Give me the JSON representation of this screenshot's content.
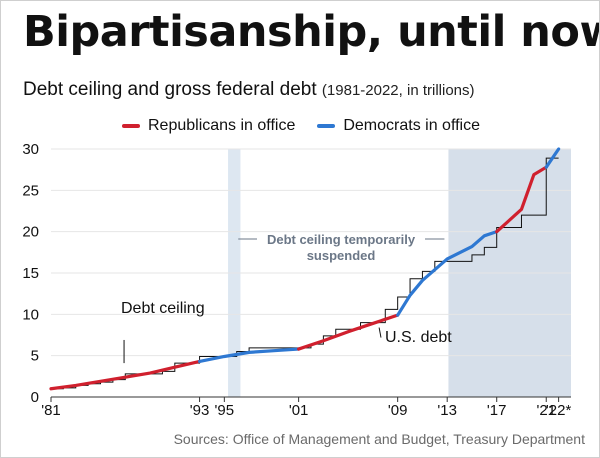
{
  "chart_data": {
    "type": "line",
    "title": "Bipartisanship, until now",
    "subtitle": "Debt ceiling and gross federal debt",
    "subtitle_detail": "(1981-2022, in trillions)",
    "xlim": [
      1981,
      2023
    ],
    "ylim": [
      0,
      30
    ],
    "yticks": [
      0,
      5,
      10,
      15,
      20,
      25,
      30
    ],
    "xticks": [
      {
        "value": 1981,
        "label": "'81"
      },
      {
        "value": 1993,
        "label": "'93"
      },
      {
        "value": 1995,
        "label": "'95"
      },
      {
        "value": 2001,
        "label": "'01"
      },
      {
        "value": 2009,
        "label": "'09"
      },
      {
        "value": 2013,
        "label": "'13"
      },
      {
        "value": 2017,
        "label": "'17"
      },
      {
        "value": 2021,
        "label": "'21"
      },
      {
        "value": 2022,
        "label": "'22*"
      }
    ],
    "legend": [
      {
        "name": "Republicans in office",
        "color": "#d0202e"
      },
      {
        "name": "Democrats in office",
        "color": "#2e78d2"
      }
    ],
    "shaded_periods": [
      {
        "start": 1995.3,
        "end": 1996.3,
        "color": "#dde7f1"
      },
      {
        "start": 2013.1,
        "end": 2023.0,
        "color": "#d6dfea"
      }
    ],
    "series": [
      {
        "name": "U.S. debt",
        "segments": [
          {
            "party": "Republicans in office",
            "points": [
              [
                1981,
                1.0
              ],
              [
                1983,
                1.4
              ],
              [
                1985,
                1.9
              ],
              [
                1987,
                2.4
              ],
              [
                1989,
                2.9
              ],
              [
                1991,
                3.6
              ],
              [
                1993,
                4.3
              ]
            ]
          },
          {
            "party": "Democrats in office",
            "points": [
              [
                1993,
                4.3
              ],
              [
                1995,
                4.9
              ],
              [
                1997,
                5.4
              ],
              [
                1999,
                5.6
              ],
              [
                2001,
                5.8
              ]
            ]
          },
          {
            "party": "Republicans in office",
            "points": [
              [
                2001,
                5.8
              ],
              [
                2003,
                6.8
              ],
              [
                2005,
                7.9
              ],
              [
                2007,
                8.9
              ],
              [
                2009,
                9.9
              ]
            ]
          },
          {
            "party": "Democrats in office",
            "points": [
              [
                2009,
                9.9
              ],
              [
                2010,
                12.3
              ],
              [
                2011,
                14.1
              ],
              [
                2013,
                16.7
              ],
              [
                2015,
                18.2
              ],
              [
                2016,
                19.5
              ],
              [
                2017,
                20.0
              ]
            ]
          },
          {
            "party": "Republicans in office",
            "points": [
              [
                2017,
                20.0
              ],
              [
                2019,
                22.7
              ],
              [
                2020,
                26.9
              ],
              [
                2021,
                27.8
              ]
            ]
          },
          {
            "party": "Democrats in office",
            "points": [
              [
                2021,
                27.8
              ],
              [
                2022,
                30.0
              ]
            ]
          }
        ]
      },
      {
        "name": "Debt ceiling",
        "color": "#111111",
        "step_points": [
          [
            1981,
            1.0
          ],
          [
            1982,
            1.1
          ],
          [
            1983,
            1.4
          ],
          [
            1984,
            1.6
          ],
          [
            1985,
            1.8
          ],
          [
            1986,
            2.1
          ],
          [
            1987,
            2.8
          ],
          [
            1990,
            3.1
          ],
          [
            1991,
            4.1
          ],
          [
            1993,
            4.9
          ],
          [
            1996,
            5.5
          ],
          [
            1997,
            5.95
          ],
          [
            2002,
            6.4
          ],
          [
            2003,
            7.4
          ],
          [
            2004,
            8.2
          ],
          [
            2006,
            9.0
          ],
          [
            2008,
            10.6
          ],
          [
            2009,
            12.1
          ],
          [
            2010,
            14.3
          ],
          [
            2011,
            15.2
          ],
          [
            2012,
            16.4
          ],
          [
            2015,
            17.2
          ],
          [
            2016,
            18.1
          ],
          [
            2017,
            20.5
          ],
          [
            2019,
            22.0
          ],
          [
            2021,
            28.9
          ],
          [
            2022,
            28.9
          ]
        ]
      }
    ],
    "annotations": {
      "debt_ceiling": "Debt ceiling",
      "us_debt": "U.S. debt",
      "suspended_line1": "Debt ceiling temporarily",
      "suspended_line2": "suspended"
    },
    "source": "Sources: Office of Management and Budget, Treasury Department"
  }
}
